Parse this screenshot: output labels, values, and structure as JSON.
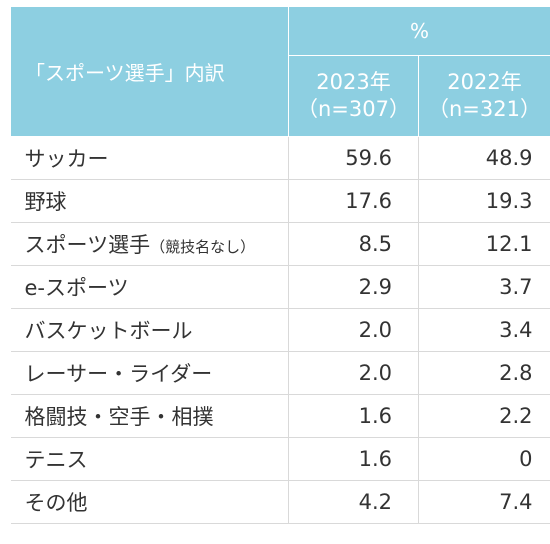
{
  "chart_data": {
    "type": "table",
    "title": "",
    "header": {
      "corner": "「スポーツ選手」内訳",
      "unit": "%",
      "columns": [
        {
          "year": "2023年",
          "n": "（n=307）"
        },
        {
          "year": "2022年",
          "n": "（n=321）"
        }
      ]
    },
    "rows": [
      {
        "label": "サッカー",
        "note": "",
        "values": [
          "59.6",
          "48.9"
        ]
      },
      {
        "label": "野球",
        "note": "",
        "values": [
          "17.6",
          "19.3"
        ]
      },
      {
        "label": "スポーツ選手",
        "note": "（競技名なし）",
        "values": [
          "8.5",
          "12.1"
        ]
      },
      {
        "label": "e-スポーツ",
        "note": "",
        "values": [
          "2.9",
          "3.7"
        ]
      },
      {
        "label": "バスケットボール",
        "note": "",
        "values": [
          "2.0",
          "3.4"
        ]
      },
      {
        "label": "レーサー・ライダー",
        "note": "",
        "values": [
          "2.0",
          "2.8"
        ]
      },
      {
        "label": "格闘技・空手・相撲",
        "note": "",
        "values": [
          "1.6",
          "2.2"
        ]
      },
      {
        "label": "テニス",
        "note": "",
        "values": [
          "1.6",
          "0"
        ]
      },
      {
        "label": "その他",
        "note": "",
        "values": [
          "4.2",
          "7.4"
        ]
      }
    ]
  }
}
